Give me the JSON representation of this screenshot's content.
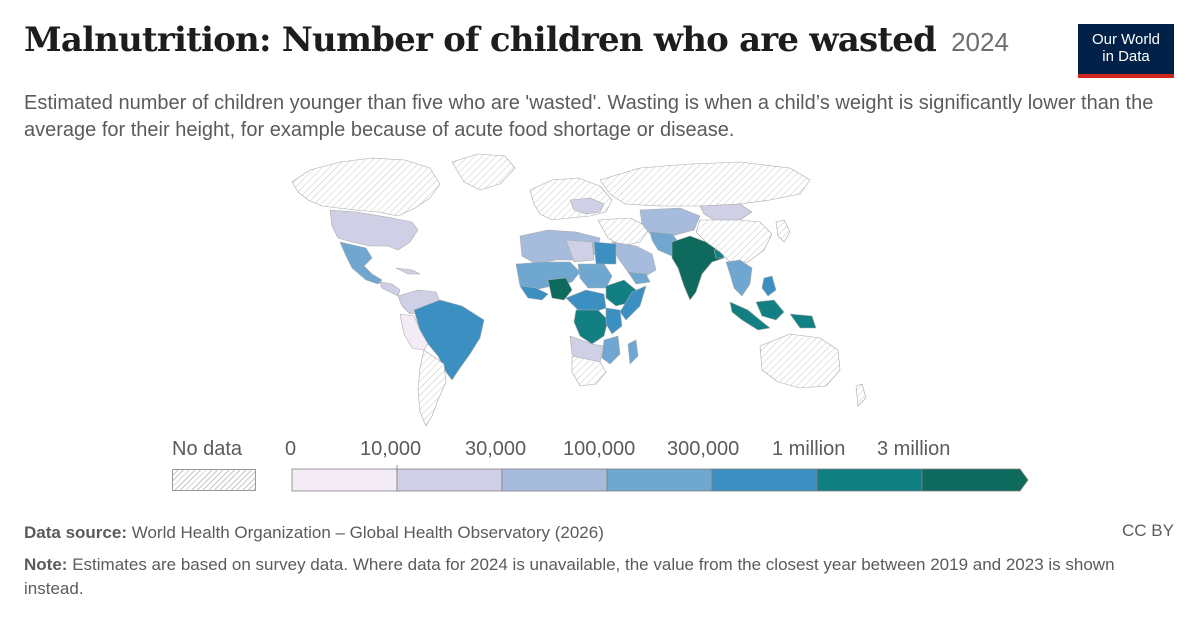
{
  "header": {
    "title": "Malnutrition: Number of children who are wasted",
    "year": "2024",
    "subtitle": "Estimated number of children younger than five who are 'wasted'. Wasting is when a child’s weight is significantly lower than the average for their height, for example because of acute food shortage or disease."
  },
  "logo": {
    "line1": "Our World",
    "line2": "in Data"
  },
  "legend": {
    "no_data_label": "No data",
    "bins": [
      {
        "label": "0",
        "color": "#f3ecf6"
      },
      {
        "label": "10,000",
        "color": "#cfd0e6"
      },
      {
        "label": "30,000",
        "color": "#a7bcdc"
      },
      {
        "label": "100,000",
        "color": "#6fa7d1"
      },
      {
        "label": "300,000",
        "color": "#3b8fc1"
      },
      {
        "label": "1 million",
        "color": "#127f83"
      },
      {
        "label": "3 million",
        "color": "#0e6a5d"
      }
    ]
  },
  "footer": {
    "source_label": "Data source:",
    "source_text": "World Health Organization – Global Health Observatory (2026)",
    "license": "CC BY",
    "note_label": "Note:",
    "note_text": "Estimates are based on survey data. Where data for 2024 is unavailable, the value from the closest year between 2019 and 2023 is shown instead."
  },
  "map_data": {
    "type": "choropleth",
    "year": "2024",
    "colored_regions": {
      "United States": "10,000–30,000",
      "Mexico": "100,000–300,000",
      "Central America": "10,000–30,000",
      "Brazil": "300,000–1 million",
      "Bolivia/Peru": "0–10,000",
      "Sahel / West Africa": "100,000–300,000",
      "Nigeria": "1 million–3 million",
      "DR Congo": "1 million–3 million",
      "Ethiopia": "1 million–3 million",
      "Egypt": "300,000–1 million",
      "East Africa": "300,000–1 million",
      "Yemen / Arabia": "100,000–300,000",
      "Pakistan/Central Asia": "30,000–100,000",
      "India": "3 million+",
      "Southeast Asia": "300,000–1 million",
      "Indonesia": "1 million–3 million",
      "Mongolia": "10,000–30,000",
      "Eastern Europe": "10,000–30,000"
    }
  }
}
